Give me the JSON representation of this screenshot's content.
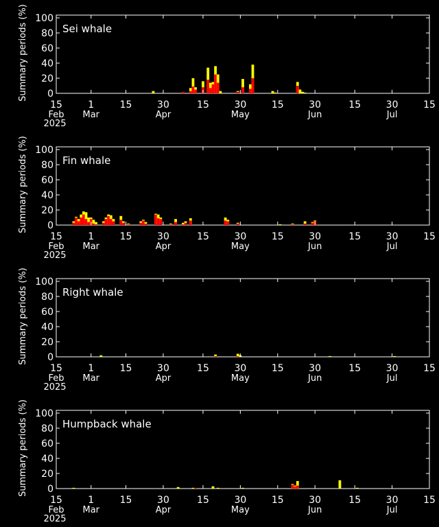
{
  "colors": {
    "background": "#000000",
    "axis": "#ffffff",
    "present_definite": "#ff0000",
    "present_possible": "#ffff00"
  },
  "ylabel": "Summary periods (%)",
  "yticks": [
    0,
    20,
    40,
    60,
    80,
    100
  ],
  "year_label": "2025",
  "xticks": [
    {
      "date": "2025-02-15",
      "day": "15",
      "month": "Feb"
    },
    {
      "date": "2025-03-01",
      "day": "1",
      "month": "Mar"
    },
    {
      "date": "2025-03-15",
      "day": "15",
      "month": ""
    },
    {
      "date": "2025-03-30",
      "day": "30",
      "month": "Apr"
    },
    {
      "date": "2025-04-15",
      "day": "15",
      "month": ""
    },
    {
      "date": "2025-04-30",
      "day": "30",
      "month": "May"
    },
    {
      "date": "2025-05-15",
      "day": "15",
      "month": ""
    },
    {
      "date": "2025-05-30",
      "day": "30",
      "month": "Jun"
    },
    {
      "date": "2025-06-15",
      "day": "15",
      "month": ""
    },
    {
      "date": "2025-06-30",
      "day": "30",
      "month": "Jul"
    },
    {
      "date": "2025-07-15",
      "day": "15",
      "month": ""
    }
  ],
  "chart_data": [
    {
      "type": "bar",
      "title": "Sei whale",
      "xlim": [
        "2025-02-15",
        "2025-07-15"
      ],
      "ylim": [
        0,
        100
      ],
      "series": [],
      "bars": [
        {
          "date": "2025-03-26",
          "red": 0,
          "yellow": 3
        },
        {
          "date": "2025-04-07",
          "red": 2,
          "yellow": 0
        },
        {
          "date": "2025-04-10",
          "red": 3,
          "yellow": 7
        },
        {
          "date": "2025-04-11",
          "red": 9,
          "yellow": 20
        },
        {
          "date": "2025-04-12",
          "red": 5,
          "yellow": 8
        },
        {
          "date": "2025-04-15",
          "red": 8,
          "yellow": 16
        },
        {
          "date": "2025-04-17",
          "red": 18,
          "yellow": 34
        },
        {
          "date": "2025-04-18",
          "red": 7,
          "yellow": 14
        },
        {
          "date": "2025-04-19",
          "red": 12,
          "yellow": 15
        },
        {
          "date": "2025-04-20",
          "red": 25,
          "yellow": 36
        },
        {
          "date": "2025-04-21",
          "red": 14,
          "yellow": 25
        },
        {
          "date": "2025-04-22",
          "red": 0,
          "yellow": 3
        },
        {
          "date": "2025-04-29",
          "red": 2,
          "yellow": 3
        },
        {
          "date": "2025-05-01",
          "red": 8,
          "yellow": 19
        },
        {
          "date": "2025-05-04",
          "red": 6,
          "yellow": 12
        },
        {
          "date": "2025-05-05",
          "red": 20,
          "yellow": 38
        },
        {
          "date": "2025-05-13",
          "red": 0,
          "yellow": 3
        },
        {
          "date": "2025-05-14",
          "red": 0,
          "yellow": 1
        },
        {
          "date": "2025-05-23",
          "red": 10,
          "yellow": 15
        },
        {
          "date": "2025-05-24",
          "red": 0,
          "yellow": 5
        },
        {
          "date": "2025-05-25",
          "red": 0,
          "yellow": 2
        },
        {
          "date": "2025-05-26",
          "red": 0,
          "yellow": 1
        }
      ]
    },
    {
      "type": "bar",
      "title": "Fin whale",
      "xlim": [
        "2025-02-15",
        "2025-07-15"
      ],
      "ylim": [
        0,
        100
      ],
      "series": [],
      "bars": [
        {
          "date": "2025-02-22",
          "red": 3,
          "yellow": 5
        },
        {
          "date": "2025-02-23",
          "red": 10,
          "yellow": 11
        },
        {
          "date": "2025-02-24",
          "red": 5,
          "yellow": 8
        },
        {
          "date": "2025-02-25",
          "red": 10,
          "yellow": 14
        },
        {
          "date": "2025-02-26",
          "red": 14,
          "yellow": 18
        },
        {
          "date": "2025-02-27",
          "red": 8,
          "yellow": 17
        },
        {
          "date": "2025-02-28",
          "red": 4,
          "yellow": 10
        },
        {
          "date": "2025-03-01",
          "red": 8,
          "yellow": 10
        },
        {
          "date": "2025-03-02",
          "red": 2,
          "yellow": 7
        },
        {
          "date": "2025-03-03",
          "red": 1,
          "yellow": 4
        },
        {
          "date": "2025-03-06",
          "red": 3,
          "yellow": 5
        },
        {
          "date": "2025-03-07",
          "red": 8,
          "yellow": 10
        },
        {
          "date": "2025-03-08",
          "red": 12,
          "yellow": 14
        },
        {
          "date": "2025-03-09",
          "red": 8,
          "yellow": 13
        },
        {
          "date": "2025-03-10",
          "red": 5,
          "yellow": 8
        },
        {
          "date": "2025-03-13",
          "red": 7,
          "yellow": 12
        },
        {
          "date": "2025-03-14",
          "red": 3,
          "yellow": 5
        },
        {
          "date": "2025-03-16",
          "red": 1,
          "yellow": 2
        },
        {
          "date": "2025-03-21",
          "red": 3,
          "yellow": 5
        },
        {
          "date": "2025-03-22",
          "red": 6,
          "yellow": 7
        },
        {
          "date": "2025-03-23",
          "red": 2,
          "yellow": 4
        },
        {
          "date": "2025-03-27",
          "red": 14,
          "yellow": 15
        },
        {
          "date": "2025-03-28",
          "red": 9,
          "yellow": 14
        },
        {
          "date": "2025-03-29",
          "red": 8,
          "yellow": 10
        },
        {
          "date": "2025-04-02",
          "red": 1,
          "yellow": 2
        },
        {
          "date": "2025-04-04",
          "red": 4,
          "yellow": 8
        },
        {
          "date": "2025-04-07",
          "red": 1,
          "yellow": 3
        },
        {
          "date": "2025-04-08",
          "red": 3,
          "yellow": 5
        },
        {
          "date": "2025-04-10",
          "red": 6,
          "yellow": 9
        },
        {
          "date": "2025-04-24",
          "red": 6,
          "yellow": 10
        },
        {
          "date": "2025-04-25",
          "red": 5,
          "yellow": 7
        },
        {
          "date": "2025-04-29",
          "red": 2,
          "yellow": 3
        },
        {
          "date": "2025-05-16",
          "red": 0,
          "yellow": 1
        },
        {
          "date": "2025-05-21",
          "red": 1,
          "yellow": 2
        },
        {
          "date": "2025-05-26",
          "red": 2,
          "yellow": 5
        },
        {
          "date": "2025-05-29",
          "red": 3,
          "yellow": 4
        },
        {
          "date": "2025-05-30",
          "red": 5,
          "yellow": 6
        }
      ]
    },
    {
      "type": "bar",
      "title": "Right whale",
      "xlim": [
        "2025-02-15",
        "2025-07-15"
      ],
      "ylim": [
        0,
        100
      ],
      "series": [],
      "bars": [
        {
          "date": "2025-03-05",
          "red": 0,
          "yellow": 2
        },
        {
          "date": "2025-04-20",
          "red": 1,
          "yellow": 3
        },
        {
          "date": "2025-04-29",
          "red": 1,
          "yellow": 4
        },
        {
          "date": "2025-04-30",
          "red": 0,
          "yellow": 2
        },
        {
          "date": "2025-06-05",
          "red": 0,
          "yellow": 1
        },
        {
          "date": "2025-07-01",
          "red": 0,
          "yellow": 1
        }
      ]
    },
    {
      "type": "bar",
      "title": "Humpback whale",
      "xlim": [
        "2025-02-15",
        "2025-07-15"
      ],
      "ylim": [
        0,
        100
      ],
      "series": [],
      "bars": [
        {
          "date": "2025-02-22",
          "red": 0,
          "yellow": 1
        },
        {
          "date": "2025-04-05",
          "red": 0,
          "yellow": 2
        },
        {
          "date": "2025-04-11",
          "red": 0,
          "yellow": 1
        },
        {
          "date": "2025-04-12",
          "red": 1,
          "yellow": 1
        },
        {
          "date": "2025-04-19",
          "red": 0,
          "yellow": 3
        },
        {
          "date": "2025-04-21",
          "red": 0,
          "yellow": 1
        },
        {
          "date": "2025-05-01",
          "red": 0,
          "yellow": 1
        },
        {
          "date": "2025-05-21",
          "red": 5,
          "yellow": 6
        },
        {
          "date": "2025-05-22",
          "red": 3,
          "yellow": 4
        },
        {
          "date": "2025-05-23",
          "red": 4,
          "yellow": 10
        },
        {
          "date": "2025-06-09",
          "red": 0,
          "yellow": 11
        },
        {
          "date": "2025-06-16",
          "red": 0,
          "yellow": 1
        }
      ]
    }
  ]
}
